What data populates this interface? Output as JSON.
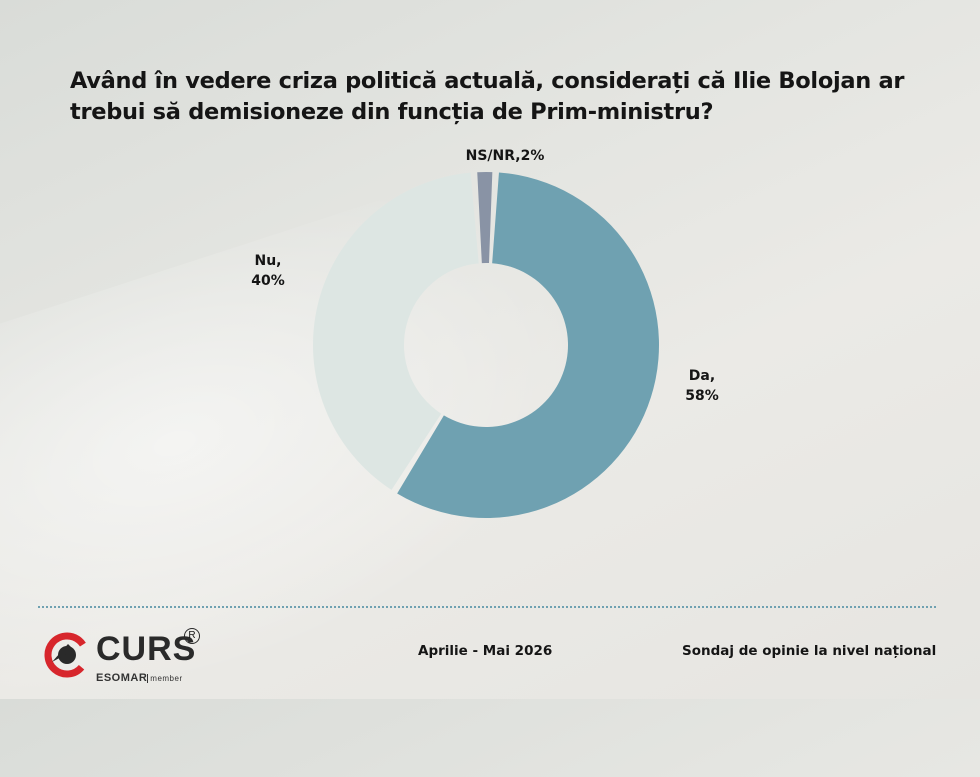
{
  "title": "Având în vedere criza politică actuală, considerați că Ilie Bolojan ar trebui să demisioneze din funcția de Prim-ministru?",
  "chart_data": {
    "type": "pie",
    "variant": "donut",
    "title": "Având în vedere criza politică actuală, considerați că Ilie Bolojan ar trebui să demisioneze din funcția de Prim-ministru?",
    "slices": [
      {
        "name": "Da",
        "value": 58,
        "label_name": "Da,",
        "label_value": "58%",
        "color": "#6fa1b1"
      },
      {
        "name": "Nu",
        "value": 40,
        "label_name": "Nu,",
        "label_value": "40%",
        "color": "#dde6e3"
      },
      {
        "name": "NS/NR",
        "value": 2,
        "label_name": "NS/NR,",
        "label_value": "2%",
        "color": "#8993a5"
      }
    ],
    "legend": "none"
  },
  "footer": {
    "logo_word": "CURS",
    "logo_reg": "R",
    "logo_esomar": "ESOMAR",
    "logo_member": "member",
    "period": "Aprilie - Mai 2026",
    "survey": "Sondaj de opinie la nivel național"
  },
  "colors": {
    "accent": "#6fa1b1",
    "logo_red": "#d7262c"
  }
}
